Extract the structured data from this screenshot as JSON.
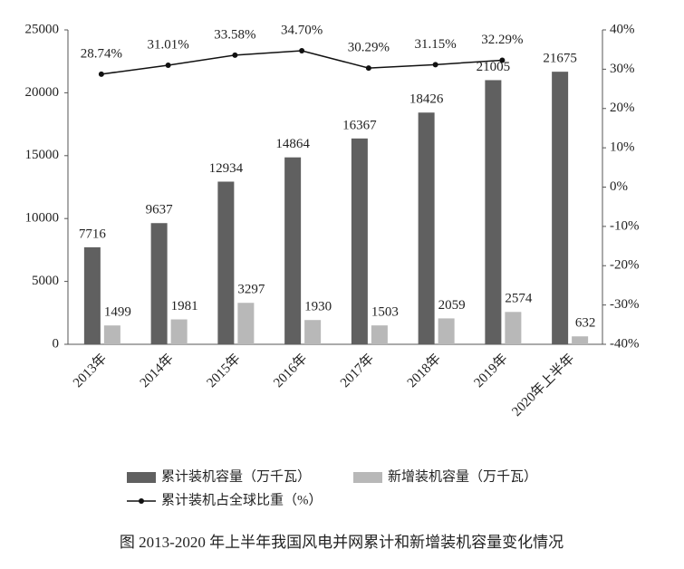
{
  "chart_data": {
    "type": "bar",
    "categories": [
      "2013年",
      "2014年",
      "2015年",
      "2016年",
      "2017年",
      "2018年",
      "2019年",
      "2020年上半年"
    ],
    "series": [
      {
        "name": "累计装机容量（万千瓦）",
        "type": "bar",
        "color": "#606060",
        "values": [
          7716,
          9637,
          12934,
          14864,
          16367,
          18426,
          21005,
          21675
        ]
      },
      {
        "name": "新增装机容量（万千瓦）",
        "type": "bar",
        "color": "#b8b8b8",
        "values": [
          1499,
          1981,
          3297,
          1930,
          1503,
          2059,
          2574,
          632
        ]
      },
      {
        "name": "累计装机占全球比重（%）",
        "type": "line",
        "axis": "y2",
        "color": "#111111",
        "values": [
          28.74,
          31.01,
          33.58,
          34.7,
          30.29,
          31.15,
          32.29,
          null
        ],
        "value_labels": [
          "28.74%",
          "31.01%",
          "33.58%",
          "34.70%",
          "30.29%",
          "31.15%",
          "32.29%",
          null
        ]
      }
    ],
    "ylim": [
      0,
      25000
    ],
    "yticks": [
      0,
      5000,
      10000,
      15000,
      20000,
      25000
    ],
    "y2lim": [
      -40,
      40
    ],
    "y2ticks": [
      {
        "value": -40,
        "label": "-40%"
      },
      {
        "value": -30,
        "label": "-30%"
      },
      {
        "value": -20,
        "label": "-20%"
      },
      {
        "value": -10,
        "label": "-10%"
      },
      {
        "value": 0,
        "label": "0%"
      },
      {
        "value": 10,
        "label": "10%"
      },
      {
        "value": 20,
        "label": "20%"
      },
      {
        "value": 30,
        "label": "30%"
      },
      {
        "value": 40,
        "label": "40%"
      }
    ],
    "grid": false,
    "caption": "图 2013-2020 年上半年我国风电并网累计和新增装机容量变化情况"
  }
}
